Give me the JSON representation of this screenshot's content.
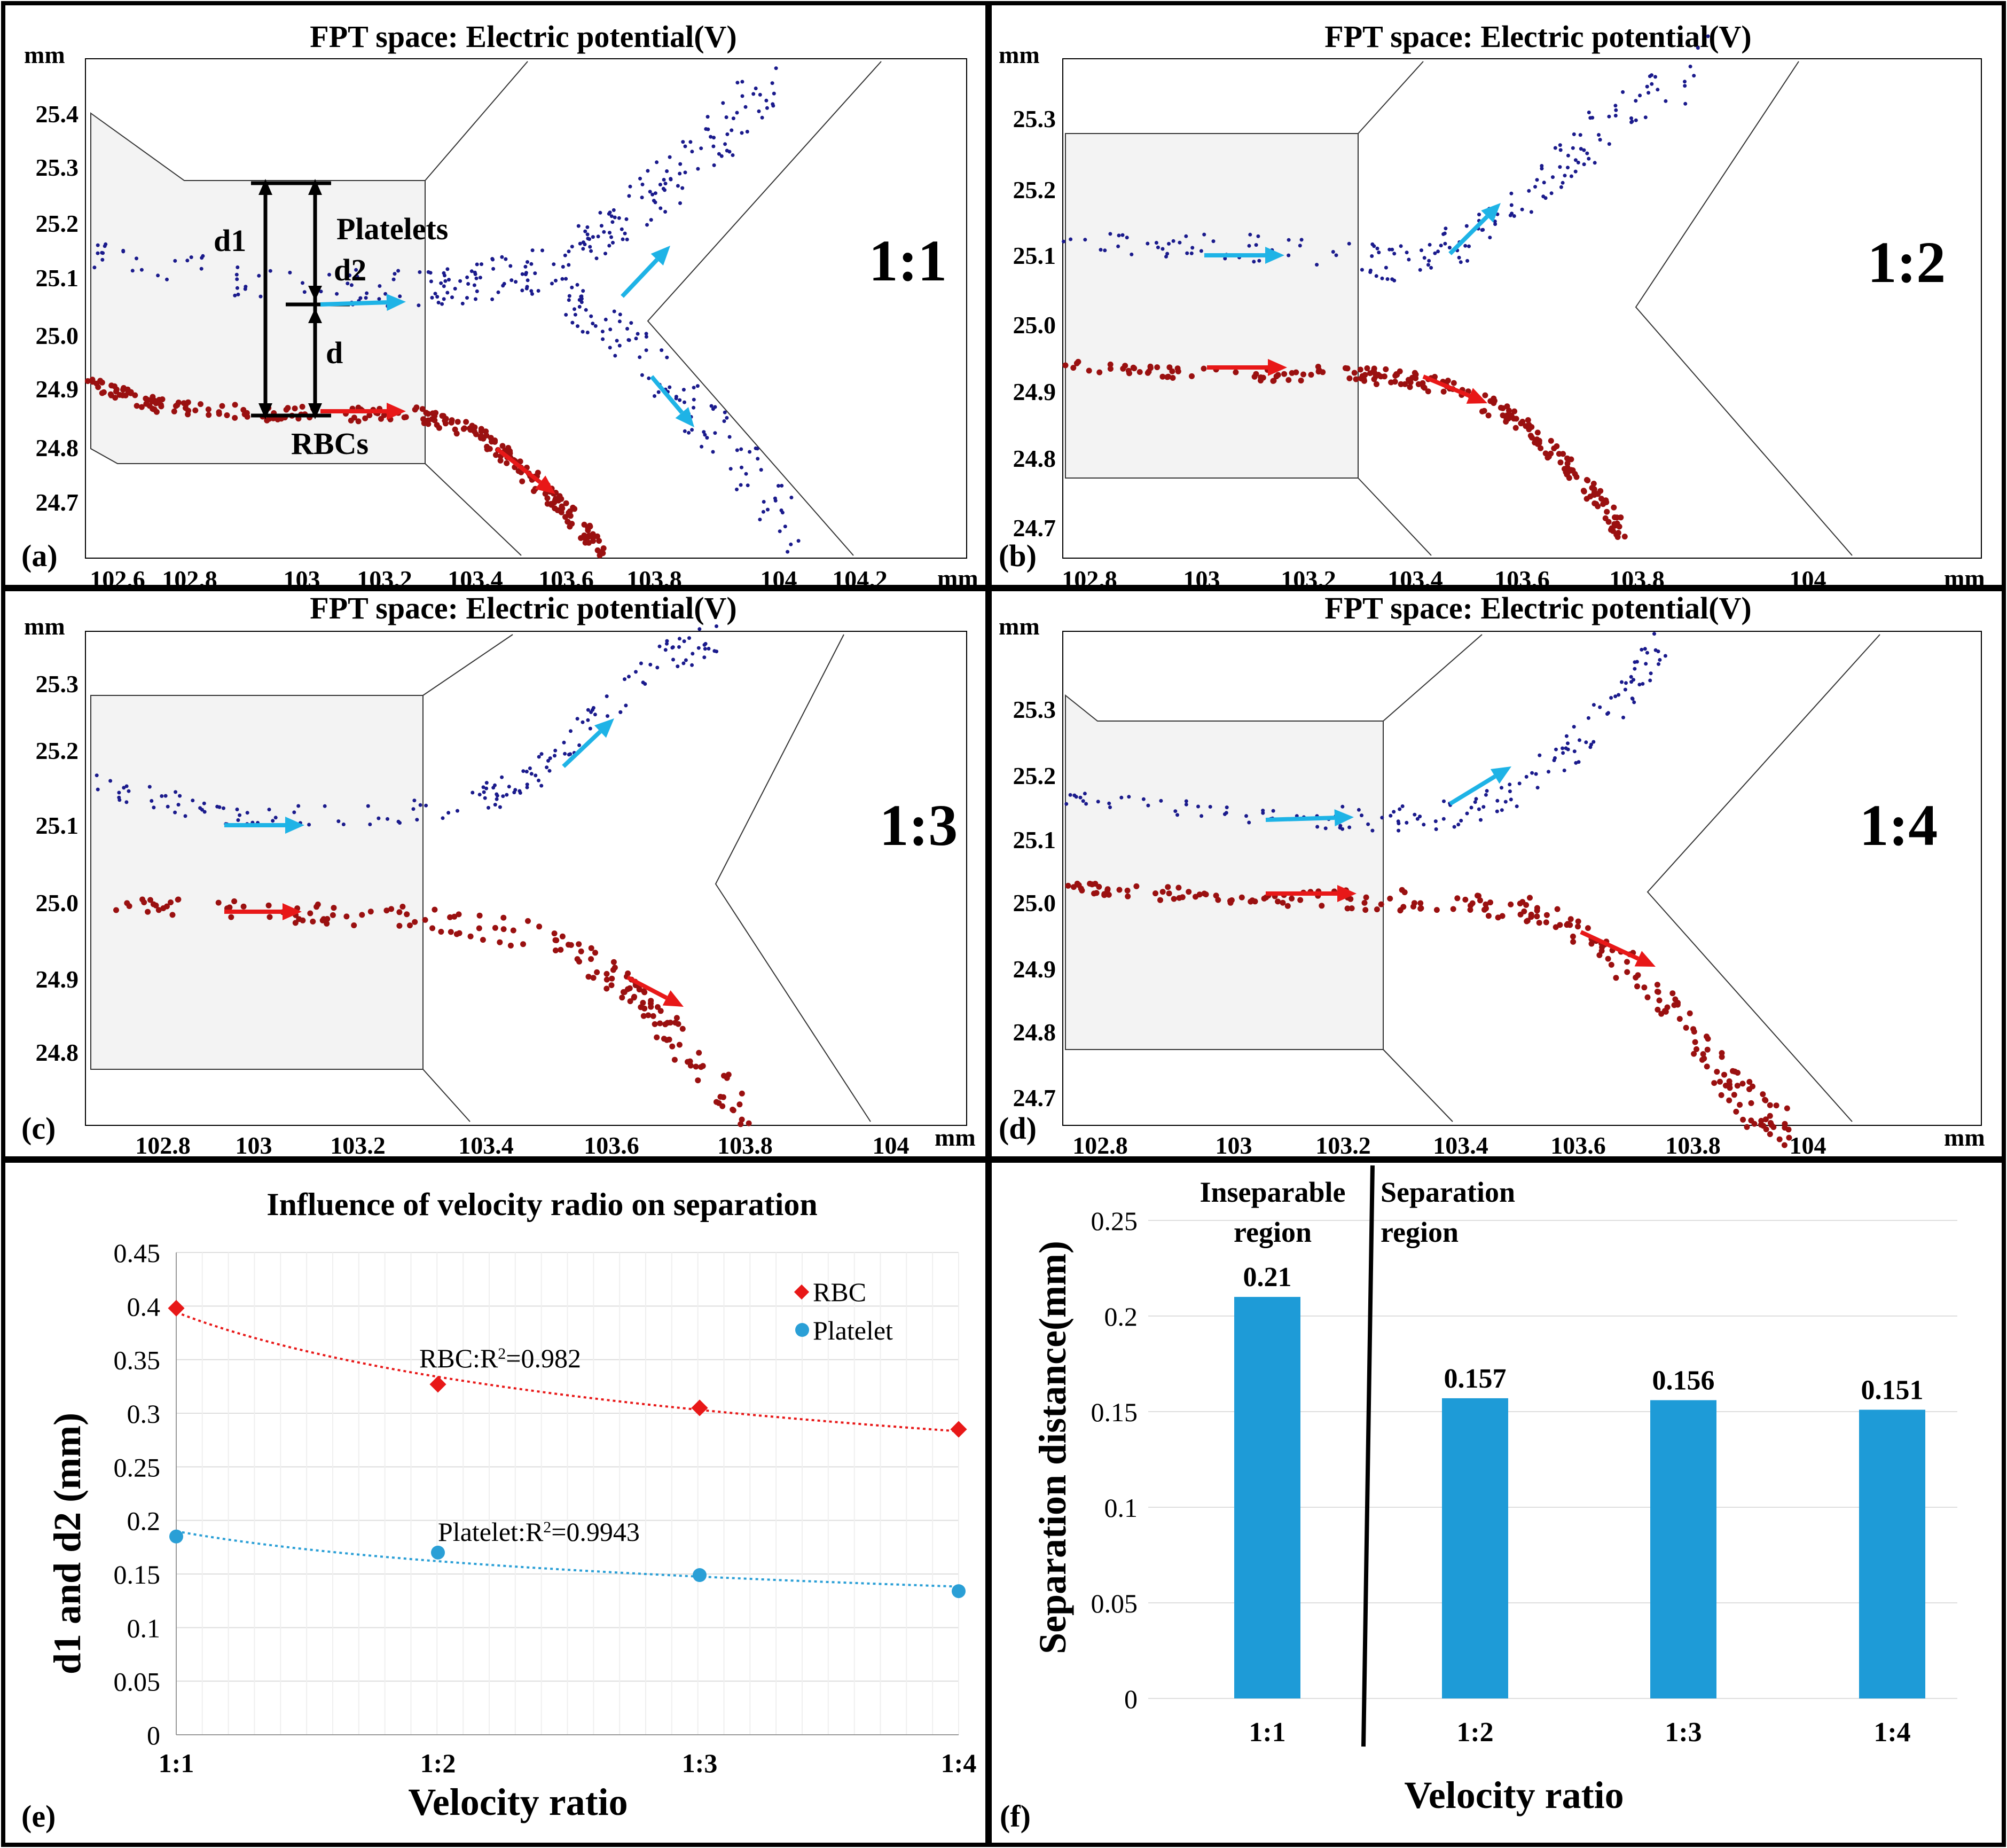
{
  "figure": {
    "colors": {
      "frame": "#000000",
      "platelet_dot": "#1a1a8c",
      "rbc_dot": "#9a1010",
      "platelet_arrow": "#1eb3e6",
      "rbc_arrow": "#e81818",
      "channel_fill": "#f3f3f3",
      "rbc_series": "#e81818",
      "platelet_series": "#2a9fd6",
      "bar": "#1e9bd7"
    }
  },
  "panels": [
    {
      "id": "a",
      "label": "(a)",
      "title": "FPT space: Electric potential(V)",
      "ratio": "1:1",
      "unit": "mm",
      "xticks": [
        "102.6",
        "102.8",
        "103",
        "103.2",
        "103.4",
        "103.6",
        "103.8",
        "104",
        "104.2"
      ],
      "yticks": [
        "25.4",
        "25.3",
        "25.2",
        "25.1",
        "25.0",
        "24.9",
        "24.8",
        "24.7"
      ],
      "annotations": {
        "d1": "d1",
        "d2": "d2",
        "d": "d",
        "platelets": "Platelets",
        "rbcs": "RBCs"
      }
    },
    {
      "id": "b",
      "label": "(b)",
      "title": "FPT space: Electric potential(V)",
      "ratio": "1:2",
      "unit": "mm",
      "xticks": [
        "102.8",
        "103",
        "103.2",
        "103.4",
        "103.6",
        "103.8",
        "104"
      ],
      "yticks": [
        "25.3",
        "25.2",
        "25.1",
        "25.0",
        "24.9",
        "24.8",
        "24.7"
      ]
    },
    {
      "id": "c",
      "label": "(c)",
      "title": "FPT space: Electric potential(V)",
      "ratio": "1:3",
      "unit": "mm",
      "xticks": [
        "102.8",
        "103",
        "103.2",
        "103.4",
        "103.6",
        "103.8",
        "104"
      ],
      "yticks": [
        "25.3",
        "25.2",
        "25.1",
        "25.0",
        "24.9",
        "24.8"
      ]
    },
    {
      "id": "d",
      "label": "(d)",
      "title": "FPT space: Electric potential(V)",
      "ratio": "1:4",
      "unit": "mm",
      "xticks": [
        "102.8",
        "103",
        "103.2",
        "103.4",
        "103.6",
        "103.8",
        "104"
      ],
      "yticks": [
        "25.3",
        "25.2",
        "25.1",
        "25.0",
        "24.9",
        "24.8",
        "24.7"
      ]
    }
  ],
  "chart_data": [
    {
      "panel": "(e)",
      "type": "scatter",
      "title": "Influence of velocity radio on separation",
      "xlabel": "Velocity ratio",
      "ylabel": "d1 and d2 (mm)",
      "categories": [
        "1:1",
        "1:2",
        "1:3",
        "1:4"
      ],
      "ylim": [
        0,
        0.45
      ],
      "yticks": [
        "0",
        "0.05",
        "0.1",
        "0.15",
        "0.2",
        "0.25",
        "0.3",
        "0.35",
        "0.4",
        "0.45"
      ],
      "legend_position": "top-right",
      "series": [
        {
          "name": "RBC",
          "marker": "diamond",
          "values": [
            0.398,
            0.327,
            0.305,
            0.285
          ],
          "trend_label": "RBC:R",
          "trend_r2": "=0.982"
        },
        {
          "name": "Platelet",
          "marker": "circle",
          "values": [
            0.185,
            0.17,
            0.149,
            0.134
          ],
          "trend_label": "Platelet:R",
          "trend_r2": "=0.9943"
        }
      ],
      "trendline": "power, dotted"
    },
    {
      "panel": "(f)",
      "type": "bar",
      "xlabel": "Velocity ratio",
      "ylabel": "Separation distance(mm)",
      "categories": [
        "1:1",
        "1:2",
        "1:3",
        "1:4"
      ],
      "values": [
        0.21,
        0.157,
        0.156,
        0.151
      ],
      "data_labels": [
        "0.21",
        "0.157",
        "0.156",
        "0.151"
      ],
      "ylim": [
        0,
        0.25
      ],
      "yticks": [
        "0",
        "0.05",
        "0.1",
        "0.15",
        "0.2",
        "0.25"
      ],
      "annotations": [
        "Inseparable region",
        "Separation region"
      ]
    }
  ]
}
